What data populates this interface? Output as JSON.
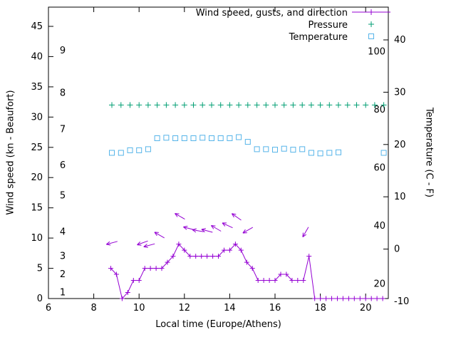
{
  "figure": {
    "xlabel": "Local time (Europe/Athens)",
    "ylabel_left": "Wind speed (kn - Beaufort)",
    "ylabel_right": "Temperature (C - F)"
  },
  "colors": {
    "wind": "#9400d3",
    "pressure": "#009e73",
    "temperature": "#56b4e9",
    "axis": "#000000",
    "background": "#ffffff"
  },
  "chart_data": {
    "type": "line",
    "title": "",
    "xlabel": "Local time (Europe/Athens)",
    "ylabel": "Wind speed (kn - Beaufort)",
    "y2label": "Temperature (C - F)",
    "xlim": [
      6,
      21
    ],
    "ylim_kn": [
      0,
      48.2
    ],
    "y2lim_c": [
      -10,
      40
    ],
    "x_ticks": [
      6,
      8,
      10,
      12,
      14,
      16,
      18,
      20
    ],
    "y_ticks_kn": [
      0,
      5,
      10,
      15,
      20,
      25,
      30,
      35,
      40,
      45
    ],
    "y2_ticks_c": [
      -10,
      0,
      10,
      20,
      30,
      40
    ],
    "beaufort_scale": [
      {
        "beaufort": 1,
        "kn": 1
      },
      {
        "beaufort": 2,
        "kn": 4
      },
      {
        "beaufort": 3,
        "kn": 7
      },
      {
        "beaufort": 4,
        "kn": 11
      },
      {
        "beaufort": 5,
        "kn": 17
      },
      {
        "beaufort": 6,
        "kn": 22
      },
      {
        "beaufort": 7,
        "kn": 28
      },
      {
        "beaufort": 8,
        "kn": 34
      },
      {
        "beaufort": 9,
        "kn": 41
      }
    ],
    "fahrenheit_scale": [
      20,
      40,
      60,
      80,
      100
    ],
    "legend": [
      {
        "label": "Wind speed, gusts, and direction",
        "color": "#9400d3",
        "marker": "plus-line"
      },
      {
        "label": "Pressure",
        "color": "#009e73",
        "marker": "plus"
      },
      {
        "label": "Temperature",
        "color": "#56b4e9",
        "marker": "square"
      }
    ],
    "series": {
      "wind_speed": {
        "x": [
          8.75,
          9,
          9.25,
          9.5,
          9.75,
          10,
          10.25,
          10.5,
          10.75,
          11,
          11.25,
          11.5,
          11.75,
          12,
          12.25,
          12.5,
          12.75,
          13,
          13.25,
          13.5,
          13.75,
          14,
          14.25,
          14.5,
          14.75,
          15,
          15.25,
          15.5,
          15.75,
          16,
          16.25,
          16.5,
          16.75,
          17,
          17.25,
          17.5,
          17.75,
          18,
          18.25,
          18.5,
          18.75,
          19,
          19.25,
          19.5,
          19.75,
          20,
          20.25,
          20.5,
          20.75
        ],
        "y_kn": [
          5,
          4,
          0,
          1,
          3,
          3,
          5,
          5,
          5,
          5,
          6,
          7,
          9,
          8,
          7,
          7,
          7,
          7,
          7,
          7,
          8,
          8,
          9,
          8,
          6,
          5,
          3,
          3,
          3,
          3,
          4,
          4,
          3,
          3,
          3,
          7,
          0,
          0,
          0,
          0,
          0,
          0,
          0,
          0,
          0,
          0,
          0,
          0,
          0
        ]
      },
      "gusts_direction": [
        {
          "x": 8.8,
          "y_kn": 9.2,
          "angle_deg": 195
        },
        {
          "x": 10.15,
          "y_kn": 9.2,
          "angle_deg": 200
        },
        {
          "x": 10.45,
          "y_kn": 8.8,
          "angle_deg": 195
        },
        {
          "x": 10.9,
          "y_kn": 10.5,
          "angle_deg": 150
        },
        {
          "x": 11.8,
          "y_kn": 13.6,
          "angle_deg": 150
        },
        {
          "x": 12.2,
          "y_kn": 11.6,
          "angle_deg": 165
        },
        {
          "x": 12.6,
          "y_kn": 11.2,
          "angle_deg": 170
        },
        {
          "x": 13.0,
          "y_kn": 11.2,
          "angle_deg": 165
        },
        {
          "x": 13.4,
          "y_kn": 11.6,
          "angle_deg": 150
        },
        {
          "x": 13.9,
          "y_kn": 12.1,
          "angle_deg": 155
        },
        {
          "x": 14.3,
          "y_kn": 13.5,
          "angle_deg": 145
        },
        {
          "x": 14.8,
          "y_kn": 11.3,
          "angle_deg": 210
        },
        {
          "x": 17.35,
          "y_kn": 11.0,
          "angle_deg": 240
        }
      ],
      "pressure": {
        "x": [
          8.8,
          9.2,
          9.6,
          10,
          10.4,
          10.8,
          11.2,
          11.6,
          12,
          12.4,
          12.8,
          13.2,
          13.6,
          14,
          14.4,
          14.8,
          15.2,
          15.6,
          16,
          16.4,
          16.8,
          17.2,
          17.6,
          18,
          18.4,
          18.8,
          19.2,
          19.6,
          20,
          20.4,
          20.8
        ],
        "level_kn": 32
      },
      "temperature": {
        "x": [
          8.8,
          9.2,
          9.6,
          10,
          10.4,
          10.8,
          11.2,
          11.6,
          12,
          12.4,
          12.8,
          13.2,
          13.6,
          14,
          14.4,
          14.8,
          15.2,
          15.6,
          16,
          16.4,
          16.8,
          17.2,
          17.6,
          18,
          18.4,
          18.8,
          20.8
        ],
        "c": [
          18.4,
          18.4,
          18.9,
          18.9,
          19.1,
          21.2,
          21.3,
          21.2,
          21.2,
          21.2,
          21.3,
          21.2,
          21.2,
          21.2,
          21.4,
          20.5,
          19.1,
          19.1,
          19.0,
          19.2,
          19.0,
          19.1,
          18.4,
          18.3,
          18.4,
          18.5,
          18.4
        ]
      }
    }
  }
}
